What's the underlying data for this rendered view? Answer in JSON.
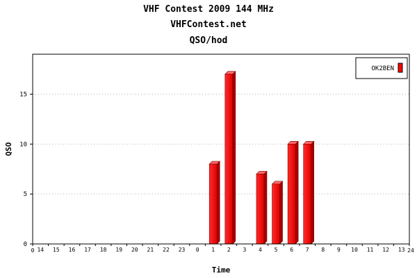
{
  "chart_data": {
    "type": "bar",
    "title": "VHF Contest 2009 144 MHz",
    "subtitle": "VHFContest.net",
    "subtitle2": "QSO/hod",
    "xlabel": "Time",
    "ylabel": "QSO",
    "categories": [
      "14",
      "15",
      "16",
      "17",
      "18",
      "19",
      "20",
      "21",
      "22",
      "23",
      "0",
      "1",
      "2",
      "3",
      "4",
      "5",
      "6",
      "7",
      "8",
      "9",
      "10",
      "11",
      "12",
      "13"
    ],
    "axis_start_label": "0",
    "axis_end_label": "24",
    "series": [
      {
        "name": "OK2BEN",
        "color": "#ff0000",
        "values": [
          0,
          0,
          0,
          0,
          0,
          0,
          0,
          0,
          0,
          0,
          0,
          8,
          17,
          0,
          7,
          6,
          10,
          10,
          0,
          0,
          0,
          0,
          0,
          0
        ]
      }
    ],
    "ylim": [
      0,
      19
    ],
    "yticks": [
      0,
      5,
      10,
      15
    ],
    "grid": true,
    "legend_position": "top-right"
  }
}
